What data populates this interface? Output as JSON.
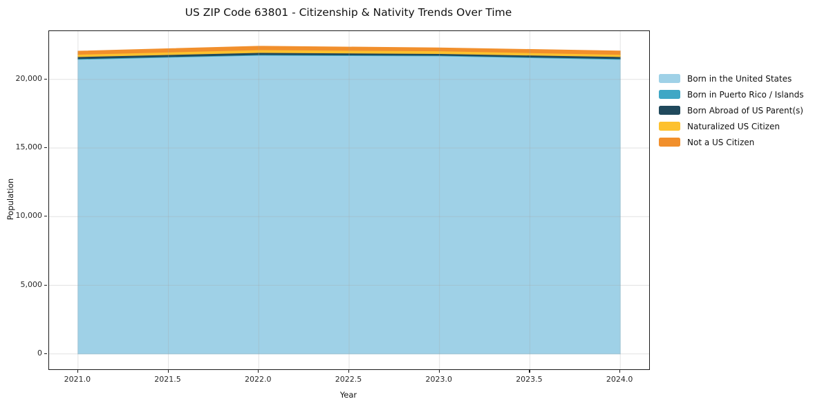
{
  "chart_data": {
    "type": "area",
    "stacked": true,
    "title": "US ZIP Code 63801 - Citizenship & Nativity Trends Over Time",
    "xlabel": "Year",
    "ylabel": "Population",
    "x": [
      2021,
      2022,
      2023,
      2024
    ],
    "series": [
      {
        "id": "born-us",
        "name": "Born in the United States",
        "color": "#9FD1E7",
        "values": [
          21450,
          21750,
          21700,
          21450
        ]
      },
      {
        "id": "born-pr",
        "name": "Born in Puerto Rico / Islands",
        "color": "#3FA7C5",
        "values": [
          50,
          50,
          50,
          50
        ]
      },
      {
        "id": "born-abroad",
        "name": "Born Abroad of US Parent(s)",
        "color": "#20495C",
        "values": [
          150,
          150,
          120,
          150
        ]
      },
      {
        "id": "naturalized",
        "name": "Naturalized US Citizen",
        "color": "#FDC12E",
        "values": [
          170,
          200,
          200,
          160
        ]
      },
      {
        "id": "not-citizen",
        "name": "Not a US Citizen",
        "color": "#F18F2C",
        "values": [
          230,
          260,
          220,
          250
        ]
      }
    ],
    "xlim": [
      2020.84,
      2024.16
    ],
    "ylim": [
      -1119,
      23510
    ],
    "x_ticks": [
      2021.0,
      2021.5,
      2022.0,
      2022.5,
      2023.0,
      2023.5,
      2024.0
    ],
    "x_tick_labels": [
      "2021.0",
      "2021.5",
      "2022.0",
      "2022.5",
      "2023.0",
      "2023.5",
      "2024.0"
    ],
    "y_ticks": [
      0,
      5000,
      10000,
      15000,
      20000
    ],
    "y_tick_labels": [
      "0",
      "5,000",
      "10,000",
      "15,000",
      "20,000"
    ],
    "grid": true,
    "grid_color": "rgba(165,165,165,0.32)",
    "legend_position": "right-outside",
    "spine_color": "#1a1a1a"
  }
}
